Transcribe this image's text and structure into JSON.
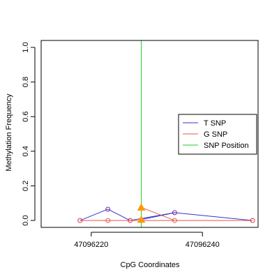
{
  "chart_data": {
    "type": "line",
    "title": "",
    "xlabel": "CpG Coordinates",
    "ylabel": "Methylation Frequency",
    "xlim": [
      47096211,
      47096250
    ],
    "ylim": [
      -0.04,
      1.04
    ],
    "x_ticks": [
      47096220,
      47096240
    ],
    "x_tick_labels": [
      "47096220",
      "47096240"
    ],
    "y_ticks": [
      0.0,
      0.2,
      0.4,
      0.6,
      0.8,
      1.0
    ],
    "y_tick_labels": [
      "0.0",
      "0.2",
      "0.4",
      "0.6",
      "0.8",
      "1.0"
    ],
    "grid": false,
    "legend_position": "right",
    "series": [
      {
        "name": "T SNP",
        "color": "#3333cc",
        "marker_color": "#7a1fa2",
        "x": [
          47096218,
          47096223,
          47096227,
          47096235,
          47096249
        ],
        "y": [
          0.0,
          0.065,
          0.0,
          0.045,
          0.0
        ]
      },
      {
        "name": "G SNP",
        "color": "#e8554e",
        "marker_color": "#e8554e",
        "x": [
          47096218,
          47096223,
          47096227,
          47096235,
          47096249
        ],
        "y": [
          0.0,
          0.0,
          0.0,
          0.0,
          0.0
        ]
      }
    ],
    "snp_position": {
      "name": "SNP Position",
      "x": 47096229,
      "color": "#22cc22"
    },
    "snp_markers": [
      {
        "x": 47096229,
        "y": 0.075,
        "color": "#ff9900"
      },
      {
        "x": 47096229,
        "y": 0.005,
        "color": "#ff9900"
      }
    ],
    "snp_to_neighbor_lines": [
      {
        "color": "#3333cc",
        "from": [
          47096229,
          0.005
        ],
        "to": [
          47096235,
          0.045
        ]
      },
      {
        "color": "#e8554e",
        "from": [
          47096229,
          0.075
        ],
        "to": [
          47096235,
          0.0
        ]
      }
    ]
  }
}
